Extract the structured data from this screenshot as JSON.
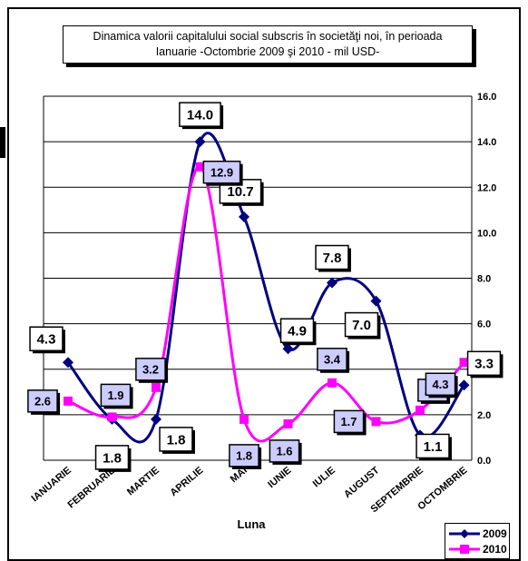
{
  "chart_data": {
    "type": "line",
    "title_line1": "Dinamica  valorii capitalului social subscris în societăţi noi,  în perioada",
    "title_line2": "Ianuarie -Octombrie 2009 şi 2010  - mil  USD-",
    "xlabel": "Luna",
    "ylabel": "",
    "categories": [
      "IANUARIE",
      "FEBRUARIE",
      "MARTIE",
      "APRILIE",
      "MAI",
      "IUNIE",
      "IULIE",
      "AUGUST",
      "SEPTEMBRIE",
      "OCTOMBRIE"
    ],
    "y_ticks": [
      "0.0",
      "2.0",
      "4.0",
      "6.0",
      "8.0",
      "10.0",
      "12.0",
      "14.0",
      "16.0"
    ],
    "ylim": [
      0,
      16
    ],
    "y_axis_side": "right",
    "grid": true,
    "legend_position": "bottom-right",
    "series": [
      {
        "name": "2009",
        "color": "#000080",
        "marker": "diamond",
        "values": [
          4.3,
          1.8,
          1.8,
          14.0,
          10.7,
          4.9,
          7.8,
          7.0,
          1.1,
          3.3
        ],
        "labels": [
          "4.3",
          "1.8",
          "1.8",
          "14.0",
          "10.7",
          "4.9",
          "7.8",
          "7.0",
          "1.1",
          "3.3"
        ]
      },
      {
        "name": "2010",
        "color": "#ff00ff",
        "marker": "square",
        "values": [
          2.6,
          1.9,
          3.2,
          12.9,
          1.8,
          1.6,
          3.4,
          1.7,
          2.2,
          4.3
        ],
        "labels": [
          "2.6",
          "1.9",
          "3.2",
          "12.9",
          "1.8",
          "1.6",
          "3.4",
          "1.7",
          "2.2",
          "4.3"
        ]
      }
    ]
  }
}
